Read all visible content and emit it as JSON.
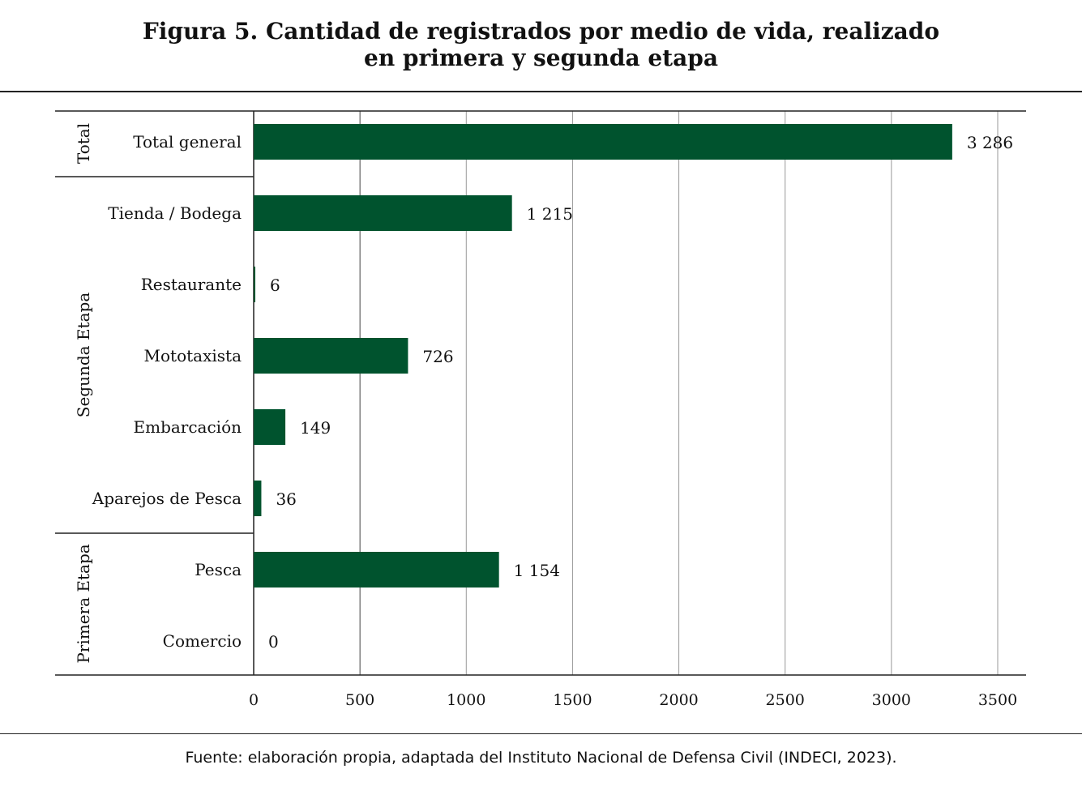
{
  "chart_data": {
    "type": "bar",
    "orientation": "horizontal",
    "title_line1": "Figura 5. Cantidad de registrados por medio de vida, realizado",
    "title_line2": "en primera y segunda etapa",
    "groups": [
      {
        "name": "Total",
        "categories": [
          "Total general"
        ]
      },
      {
        "name": "Segunda Etapa",
        "categories": [
          "Tienda / Bodega",
          "Restaurante",
          "Mototaxista",
          "Embarcación",
          "Aparejos de Pesca"
        ]
      },
      {
        "name": "Primera Etapa",
        "categories": [
          "Pesca",
          "Comercio"
        ]
      }
    ],
    "categories": [
      "Total general",
      "Tienda / Bodega",
      "Restaurante",
      "Mototaxista",
      "Embarcación",
      "Aparejos de Pesca",
      "Pesca",
      "Comercio"
    ],
    "values": [
      3286,
      1215,
      6,
      726,
      149,
      36,
      1154,
      0
    ],
    "data_labels": [
      "3 286",
      "1 215",
      "6",
      "726",
      "149",
      "36",
      "1 154",
      "0"
    ],
    "xlim": [
      0,
      3500
    ],
    "xticks": [
      "0",
      "500",
      "1000",
      "1500",
      "2000",
      "2500",
      "3000",
      "3500"
    ],
    "grid": true,
    "bar_color": "#00532e",
    "xlabel": "",
    "ylabel": ""
  },
  "footer": "Fuente: elaboración propia, adaptada del Instituto Nacional de Defensa Civil (INDECI, 2023)."
}
